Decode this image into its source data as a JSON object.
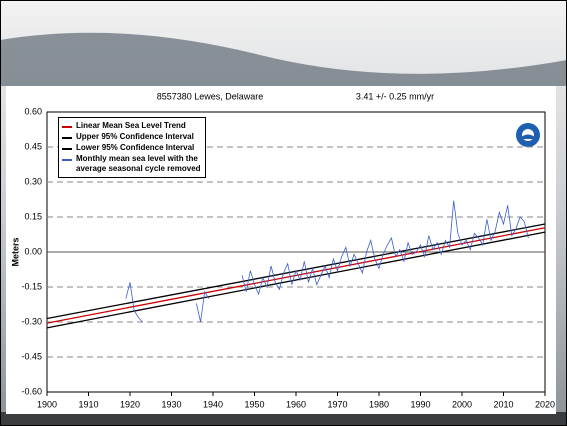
{
  "chart_data": {
    "type": "line",
    "title": "8557380 Lewes, Delaware",
    "subtitle": "3.41 +/- 0.25 mm/yr",
    "y_label": "Meters",
    "xlim": [
      1900,
      2020
    ],
    "xticks": [
      1900,
      1910,
      1920,
      1930,
      1940,
      1950,
      1960,
      1970,
      1980,
      1990,
      2000,
      2010,
      2020
    ],
    "ylim": [
      -0.6,
      0.6
    ],
    "yticks": [
      {
        "value": 0.6,
        "label": "0.60"
      },
      0.45,
      {
        "value": 0.3,
        "label": "0.30"
      },
      0.15,
      {
        "value": 0,
        "label": "0.00"
      },
      -0.15,
      {
        "value": -0.3,
        "label": "-0.30"
      },
      -0.45,
      {
        "value": -0.6,
        "label": "-0.60"
      }
    ],
    "grid": true,
    "legend": "upper left",
    "series": [
      {
        "name": "Linear Mean Sea Level Trend",
        "color": "#cc0000",
        "x": [
          1900,
          2020
        ],
        "values": [
          -0.305,
          0.104
        ]
      },
      {
        "name": "Upper 95% Confidence Interval",
        "color": "#000000",
        "x": [
          1900,
          2020
        ],
        "values": [
          -0.285,
          0.12
        ]
      },
      {
        "name": "Lower 95% Confidence Interval",
        "color": "#000000",
        "x": [
          1900,
          2020
        ],
        "values": [
          -0.325,
          0.085
        ]
      },
      {
        "name": "Monthly mean sea level with the average seasonal cycle removed",
        "color": "#3a5fcd",
        "x": [
          1919,
          1920,
          1921,
          1922,
          1923,
          1930,
          1936,
          1937,
          1938,
          1939,
          1943,
          1947,
          1948,
          1949,
          1950,
          1951,
          1952,
          1953,
          1954,
          1955,
          1956,
          1957,
          1958,
          1959,
          1960,
          1961,
          1962,
          1963,
          1964,
          1965,
          1966,
          1967,
          1968,
          1969,
          1970,
          1971,
          1972,
          1973,
          1974,
          1975,
          1976,
          1977,
          1978,
          1979,
          1980,
          1981,
          1982,
          1983,
          1984,
          1985,
          1986,
          1987,
          1988,
          1989,
          1990,
          1991,
          1992,
          1993,
          1994,
          1995,
          1996,
          1997,
          1998,
          1999,
          2000,
          2001,
          2002,
          2003,
          2004,
          2005,
          2006,
          2007,
          2008,
          2009,
          2010,
          2011,
          2012,
          2013,
          2014,
          2015,
          2016
        ],
        "values": [
          -0.2,
          -0.13,
          -0.25,
          -0.28,
          -0.3,
          null,
          -0.22,
          -0.3,
          -0.17,
          -0.2,
          null,
          -0.1,
          -0.17,
          -0.08,
          -0.14,
          -0.18,
          -0.11,
          -0.15,
          -0.06,
          -0.13,
          -0.16,
          -0.09,
          -0.05,
          -0.14,
          -0.08,
          -0.12,
          -0.04,
          -0.13,
          -0.07,
          -0.14,
          -0.1,
          -0.06,
          -0.11,
          -0.03,
          -0.08,
          -0.02,
          0.02,
          -0.06,
          -0.01,
          -0.05,
          -0.09,
          0.0,
          0.05,
          -0.03,
          -0.07,
          -0.01,
          0.03,
          0.06,
          -0.02,
          0.01,
          -0.04,
          0.04,
          -0.01,
          0.0,
          0.03,
          -0.02,
          0.07,
          0.01,
          0.04,
          -0.01,
          0.05,
          0.02,
          0.22,
          0.08,
          0.03,
          0.05,
          0.01,
          0.08,
          0.06,
          0.03,
          0.14,
          0.05,
          0.09,
          0.17,
          0.12,
          0.2,
          0.07,
          0.1,
          0.15,
          0.13,
          0.06
        ]
      }
    ]
  }
}
